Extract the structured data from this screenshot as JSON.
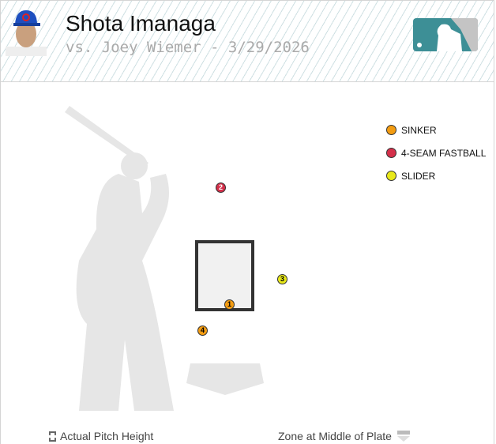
{
  "header": {
    "pitcher": "Shota Imanaga",
    "subtitle": "vs. Joey Wiemer - 3/29/2026"
  },
  "legend": [
    {
      "label": "SINKER",
      "color": "#f39c12"
    },
    {
      "label": "4-SEAM FASTBALL",
      "color": "#d4304a"
    },
    {
      "label": "SLIDER",
      "color": "#e8e81a"
    }
  ],
  "pitches": [
    {
      "num": "1",
      "type": "SINKER",
      "color": "#f39c12"
    },
    {
      "num": "2",
      "type": "4-SEAM FASTBALL",
      "color": "#d4304a"
    },
    {
      "num": "3",
      "type": "SLIDER",
      "color": "#e8e81a"
    },
    {
      "num": "4",
      "type": "SINKER",
      "color": "#f39c12"
    }
  ],
  "footer": {
    "left": "Actual Pitch Height",
    "right": "Zone at Middle of Plate"
  }
}
